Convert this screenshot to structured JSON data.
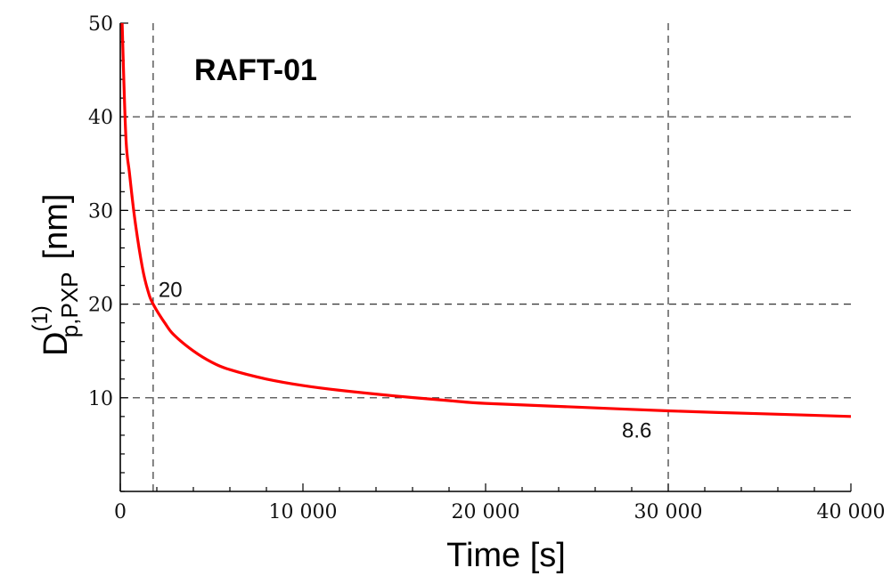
{
  "chart_data": {
    "type": "line",
    "title": "RAFT-01",
    "xlabel": "Time [s]",
    "ylabel": {
      "base": "D",
      "superscript": "(1)",
      "subscript": "p,PXP",
      "unit": "[nm]"
    },
    "xlim": [
      0,
      40000
    ],
    "ylim": [
      0,
      50
    ],
    "xticks": [
      0,
      10000,
      20000,
      30000,
      40000
    ],
    "xtick_labels": [
      "0",
      "10 000",
      "20 000",
      "30 000",
      "40 000"
    ],
    "yticks": [
      10,
      20,
      30,
      40,
      50
    ],
    "ytick_labels": [
      "10",
      "20",
      "30",
      "40",
      "50"
    ],
    "grid": "dashed horizontal lines at y = 10, 20, 30, 40",
    "reference_lines_x": [
      1800,
      30000
    ],
    "series": [
      {
        "color": "#ff0000",
        "x": [
          100,
          300,
          500,
          800,
          1200,
          1500,
          1800,
          2500,
          3000,
          4000,
          5000,
          6000,
          8000,
          10000,
          12000,
          15000,
          18000,
          20000,
          25000,
          30000,
          35000,
          40000
        ],
        "y": [
          50,
          38,
          34,
          29,
          24,
          21.5,
          20,
          17.8,
          16.6,
          15,
          13.8,
          13.0,
          12.0,
          11.3,
          10.8,
          10.2,
          9.7,
          9.4,
          9.0,
          8.6,
          8.3,
          8.0
        ]
      }
    ],
    "annotations": [
      {
        "text": "20",
        "x": 1800,
        "y": 20
      },
      {
        "text": "8.6",
        "x": 30000,
        "y": 8.6
      }
    ]
  }
}
